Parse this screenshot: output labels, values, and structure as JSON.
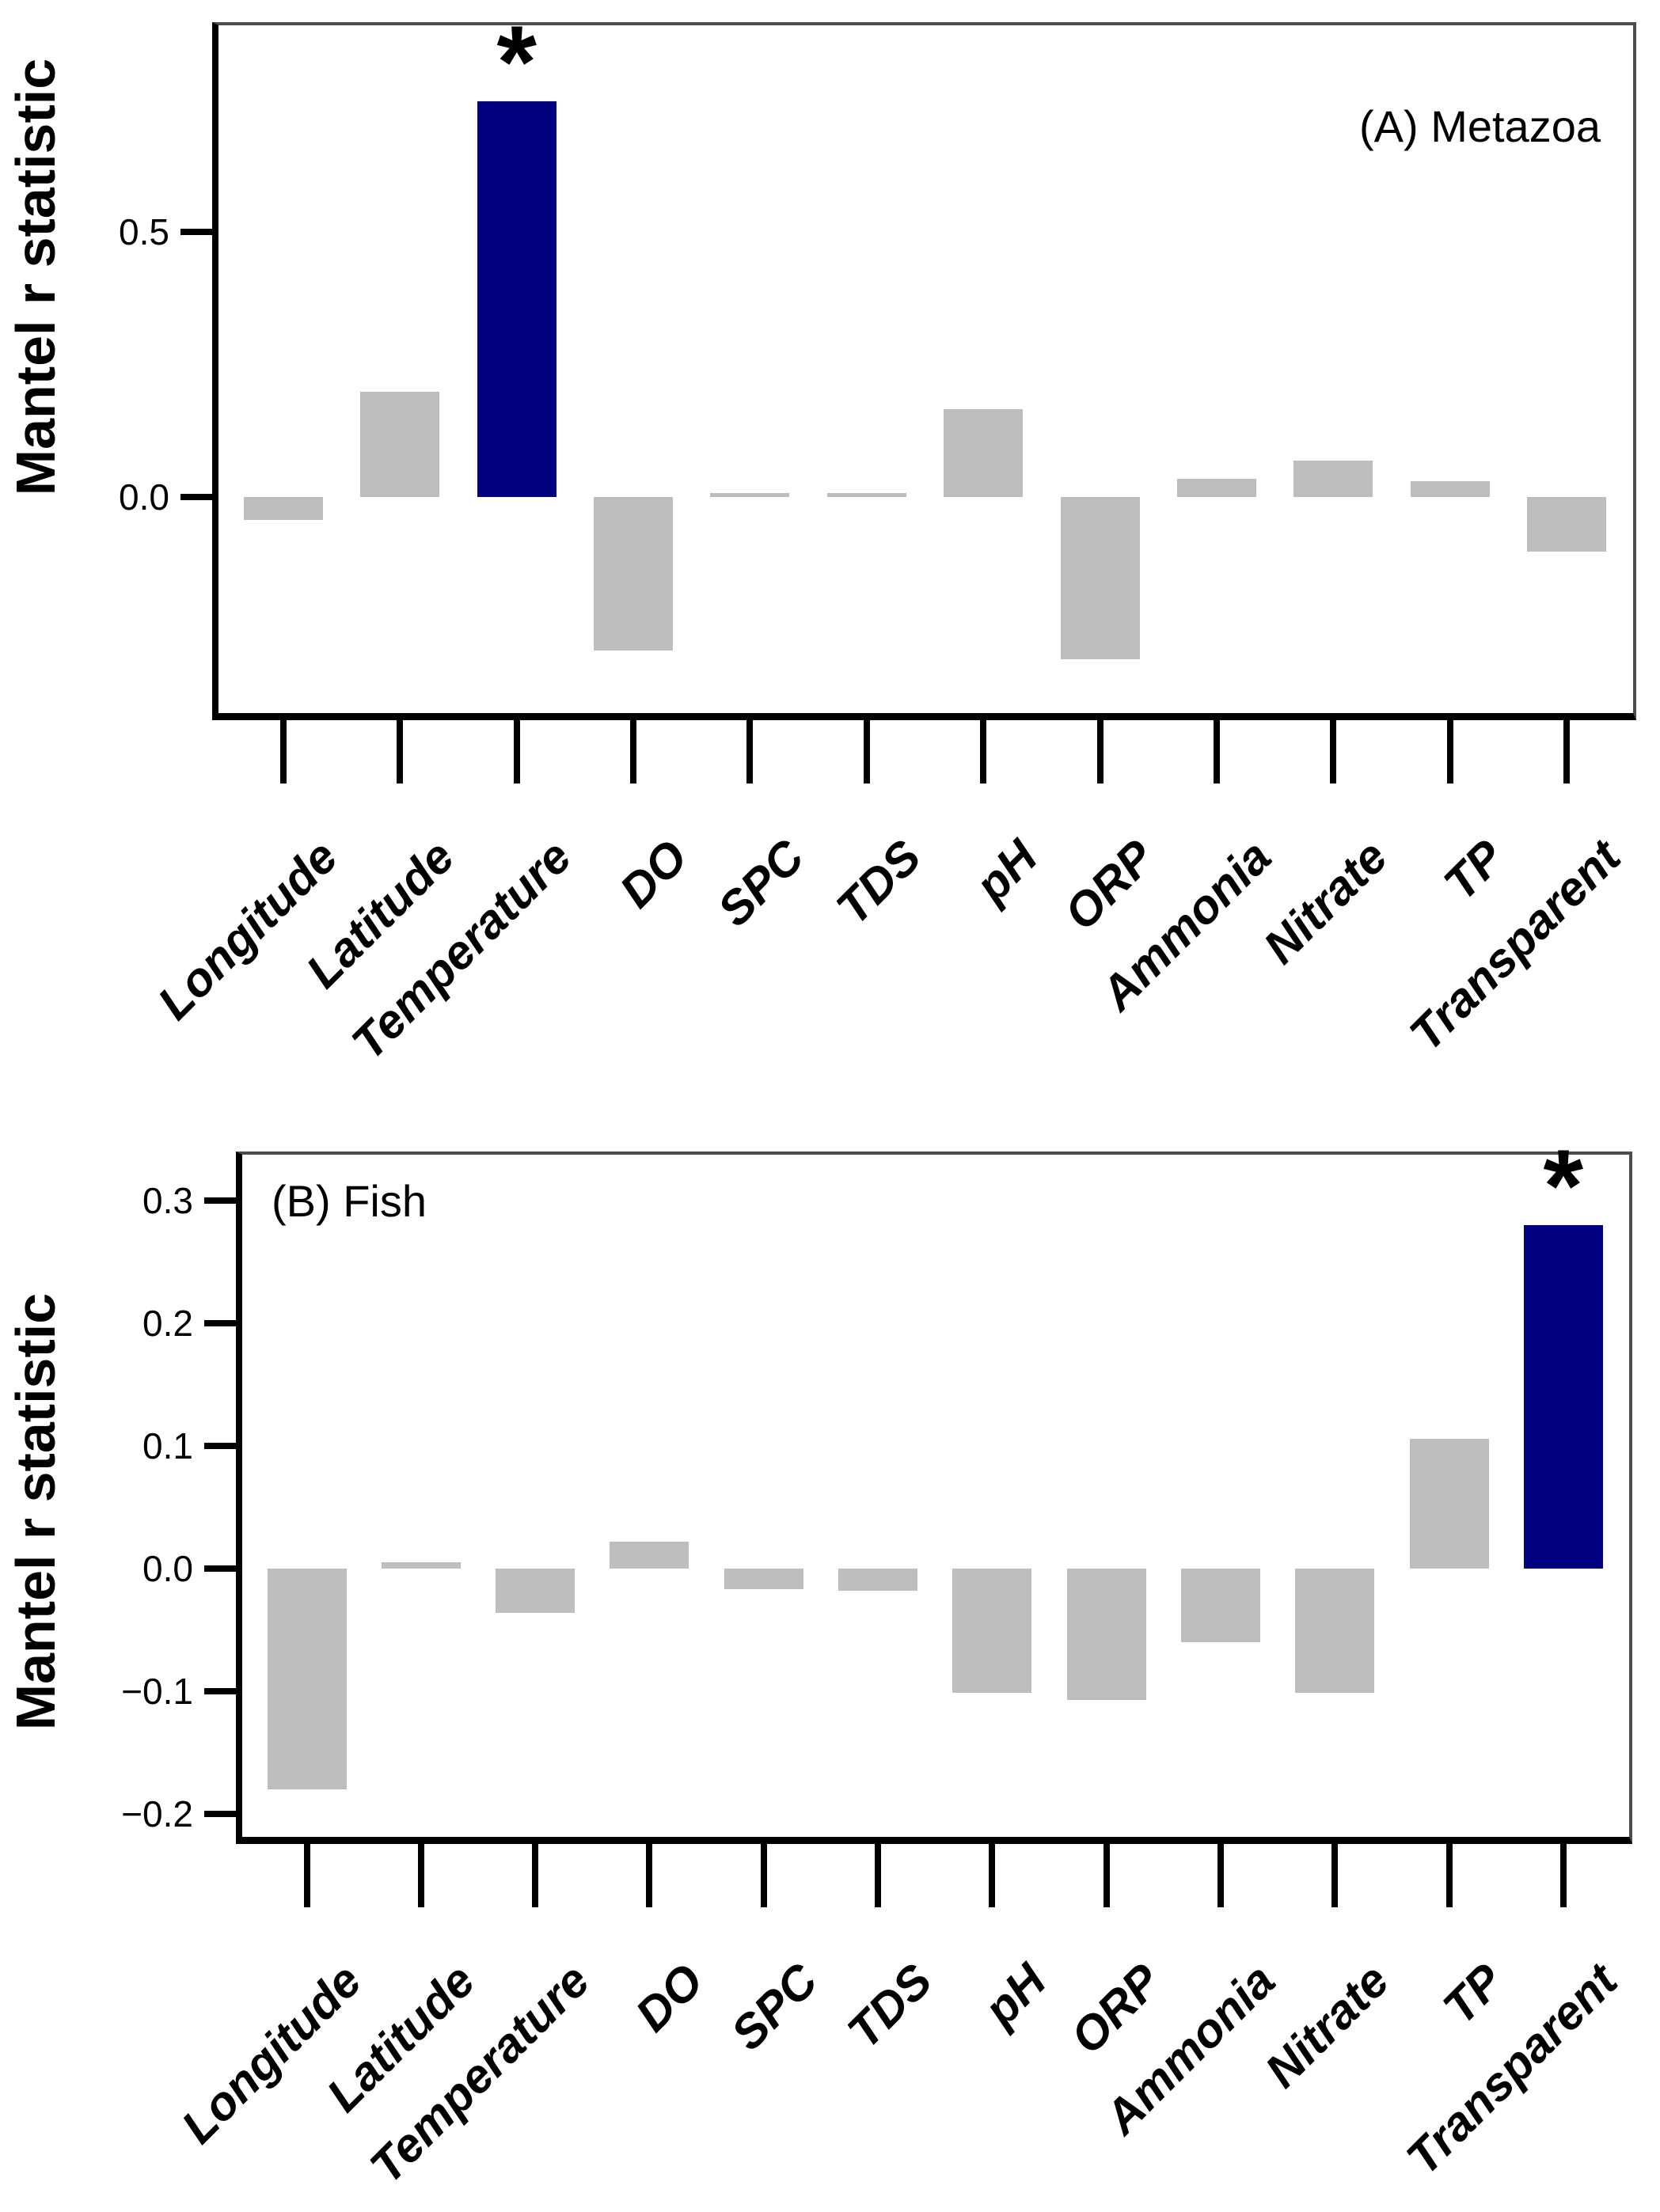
{
  "figure": {
    "description": "Two-panel bar chart of Mantel r statistics for environmental variables",
    "shared_ylabel": "Mantel r statistic",
    "significance_marker": "*",
    "colors": {
      "bar_gray": "#bebebe",
      "bar_highlight_navy": "#020280",
      "axis_black": "#000000",
      "frame_gray": "#4d4d4d",
      "background": "#ffffff"
    }
  },
  "chart_data": [
    {
      "type": "bar",
      "title": "(A) Metazoa",
      "ylabel": "Mantel r statistic",
      "xlabel": "",
      "categories": [
        "Longitude",
        "Latitude",
        "Temperature",
        "DO",
        "SPC",
        "TDS",
        "pH",
        "ORP",
        "Ammonia",
        "Nitrate",
        "TP",
        "Transparent"
      ],
      "values": [
        -0.043,
        0.199,
        0.746,
        -0.29,
        0.008,
        0.008,
        0.166,
        -0.306,
        0.034,
        0.069,
        0.03,
        -0.103
      ],
      "bar_color": "#bebebe",
      "highlight_index": 2,
      "highlight_color": "#020280",
      "significance": {
        "index": 2,
        "marker": "*"
      },
      "yticks": [
        0.5,
        0.0
      ],
      "ytick_labels": [
        "0.5",
        "0.0"
      ],
      "ylim": [
        -0.421,
        0.896
      ],
      "grid": false,
      "legend": null,
      "title_position": "top-right"
    },
    {
      "type": "bar",
      "title": "(B) Fish",
      "ylabel": "Mantel r statistic",
      "xlabel": "",
      "categories": [
        "Longitude",
        "Latitude",
        "Temperature",
        "DO",
        "SPC",
        "TDS",
        "pH",
        "ORP",
        "Ammonia",
        "Nitrate",
        "TP",
        "Transparent"
      ],
      "values": [
        -0.18,
        0.005,
        -0.036,
        0.022,
        -0.017,
        -0.018,
        -0.101,
        -0.107,
        -0.06,
        -0.101,
        0.106,
        0.28
      ],
      "bar_color": "#bebebe",
      "highlight_index": 11,
      "highlight_color": "#020280",
      "significance": {
        "index": 11,
        "marker": "*"
      },
      "yticks": [
        0.3,
        0.2,
        0.1,
        0.0,
        -0.1,
        -0.2
      ],
      "ytick_labels": [
        "0.3",
        "0.2",
        "0.1",
        "0.0",
        "−0.1",
        "−0.2"
      ],
      "ylim": [
        -0.2245,
        0.34
      ],
      "grid": false,
      "legend": null,
      "title_position": "top-left"
    }
  ]
}
